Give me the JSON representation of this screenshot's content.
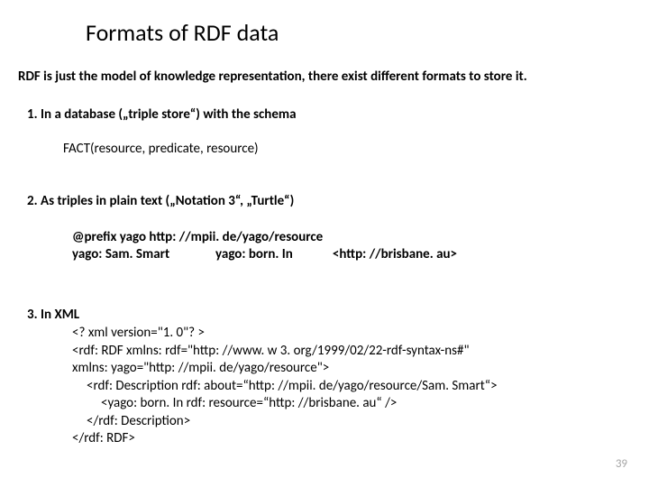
{
  "title": "Formats of RDF data",
  "intro": "RDF is just the model of knowledge representation, there exist different formats to store it.",
  "section1": {
    "heading": "1.  In a database („triple store“) with the schema",
    "body": "FACT(resource, predicate, resource)"
  },
  "section2": {
    "heading": "2. As triples in plain text („Notation 3“, „Turtle“)",
    "line1": "@prefix yago http: //mpii. de/yago/resource",
    "line2": "yago: Sam. Smart               yago: born. In             <http: //brisbane. au>"
  },
  "section3": {
    "heading": "3. In XML",
    "lines": [
      "<? xml version=\"1. 0\"? >",
      "<rdf: RDF xmlns: rdf=\"http: //www. w 3. org/1999/02/22-rdf-syntax-ns#\"",
      "     xmlns: yago=\"http: //mpii. de/yago/resource\">",
      "  <rdf: Description rdf: about=“http: //mpii. de/yago/resource/Sam. Smart“>",
      "     <yago: born. In rdf: resource=“http: //brisbane. au“ />",
      "  </rdf: Description>",
      "</rdf: RDF>"
    ]
  },
  "page_number": "39"
}
